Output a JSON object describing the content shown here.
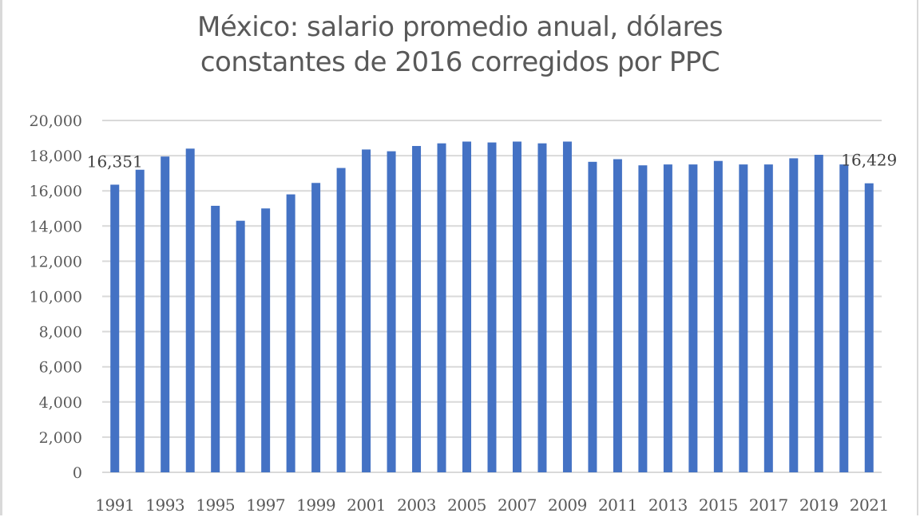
{
  "chart_data": {
    "type": "bar",
    "title": "México: salario promedio anual, dólares constantes de 2016 corregidos por PPC",
    "title_lines": [
      "México: salario promedio anual, dólares",
      "constantes de 2016 corregidos por PPC"
    ],
    "xlabel": "",
    "ylabel": "",
    "ylim": [
      0,
      20000
    ],
    "yticks": [
      0,
      2000,
      4000,
      6000,
      8000,
      10000,
      12000,
      14000,
      16000,
      18000,
      20000
    ],
    "ytick_labels": [
      "0",
      "2,000",
      "4,000",
      "6,000",
      "8,000",
      "10,000",
      "12,000",
      "14,000",
      "16,000",
      "18,000",
      "20,000"
    ],
    "grid": true,
    "legend": null,
    "bar_color": "#4472c4",
    "categories": [
      1991,
      1992,
      1993,
      1994,
      1995,
      1996,
      1997,
      1998,
      1999,
      2000,
      2001,
      2002,
      2003,
      2004,
      2005,
      2006,
      2007,
      2008,
      2009,
      2010,
      2011,
      2012,
      2013,
      2014,
      2015,
      2016,
      2017,
      2018,
      2019,
      2020,
      2021
    ],
    "xtick_labels": [
      "1991",
      "1993",
      "1995",
      "1997",
      "1999",
      "2001",
      "2003",
      "2005",
      "2007",
      "2009",
      "2011",
      "2013",
      "2015",
      "2017",
      "2019",
      "2021"
    ],
    "values": [
      16351,
      17200,
      17950,
      18400,
      15150,
      14300,
      15000,
      15800,
      16450,
      17300,
      18350,
      18250,
      18550,
      18700,
      18800,
      18750,
      18800,
      18700,
      18800,
      17650,
      17800,
      17450,
      17500,
      17500,
      17700,
      17500,
      17500,
      17850,
      18050,
      17500,
      16429
    ],
    "annotations": [
      {
        "category": 1991,
        "text": "16,351"
      },
      {
        "category": 2021,
        "text": "16,429"
      }
    ]
  }
}
